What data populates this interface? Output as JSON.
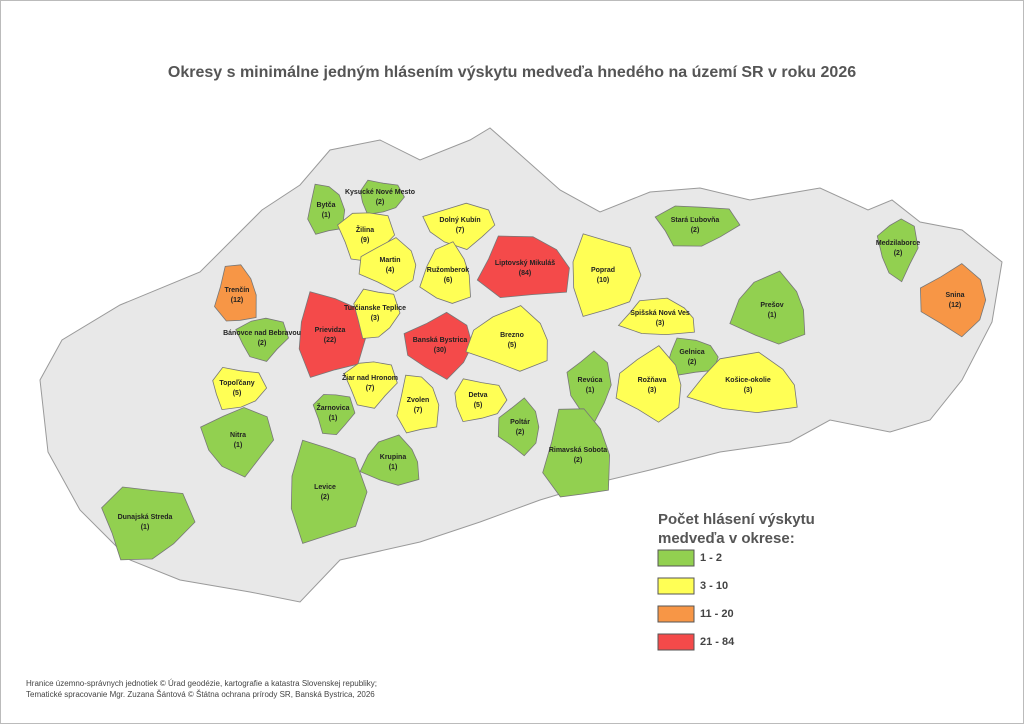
{
  "header": {
    "title": "Okresy s minimálne jedným hlásením výskytu medveďa hnedého na území SR v roku 2026"
  },
  "map": {
    "districts": [
      {
        "name": "Bytča",
        "count": "(1)",
        "color": "#92d050"
      },
      {
        "name": "Kysucké Nové Mesto",
        "count": "(2)",
        "color": "#92d050"
      },
      {
        "name": "Žilina",
        "count": "(9)",
        "color": "#ffff55"
      },
      {
        "name": "Dolný Kubín",
        "count": "(7)",
        "color": "#ffff55"
      },
      {
        "name": "Martin",
        "count": "(4)",
        "color": "#ffff55"
      },
      {
        "name": "Ružomberok",
        "count": "(6)",
        "color": "#ffff55"
      },
      {
        "name": "Liptovský Mikuláš",
        "count": "(84)",
        "color": "#f44a4a"
      },
      {
        "name": "Poprad",
        "count": "(10)",
        "color": "#ffff55"
      },
      {
        "name": "Stará Ľubovňa",
        "count": "(2)",
        "color": "#92d050"
      },
      {
        "name": "Medzilaborce",
        "count": "(2)",
        "color": "#92d050"
      },
      {
        "name": "Snina",
        "count": "(12)",
        "color": "#f79646"
      },
      {
        "name": "Prešov",
        "count": "(1)",
        "color": "#92d050"
      },
      {
        "name": "Trenčín",
        "count": "(12)",
        "color": "#f79646"
      },
      {
        "name": "Prievidza",
        "count": "(22)",
        "color": "#f44a4a"
      },
      {
        "name": "Turčianske Teplice",
        "count": "(3)",
        "color": "#ffff55"
      },
      {
        "name": "Bánovce nad Bebravou",
        "count": "(2)",
        "color": "#92d050"
      },
      {
        "name": "Banská Bystrica",
        "count": "(30)",
        "color": "#f44a4a"
      },
      {
        "name": "Brezno",
        "count": "(5)",
        "color": "#ffff55"
      },
      {
        "name": "Spišská Nová Ves",
        "count": "(3)",
        "color": "#ffff55"
      },
      {
        "name": "Gelnica",
        "count": "(2)",
        "color": "#92d050"
      },
      {
        "name": "Topoľčany",
        "count": "(5)",
        "color": "#ffff55"
      },
      {
        "name": "Žiar nad Hronom",
        "count": "(7)",
        "color": "#ffff55"
      },
      {
        "name": "Revúca",
        "count": "(1)",
        "color": "#92d050"
      },
      {
        "name": "Rožňava",
        "count": "(3)",
        "color": "#ffff55"
      },
      {
        "name": "Košice-okolie",
        "count": "(3)",
        "color": "#ffff55"
      },
      {
        "name": "Zvolen",
        "count": "(7)",
        "color": "#ffff55"
      },
      {
        "name": "Detva",
        "count": "(5)",
        "color": "#ffff55"
      },
      {
        "name": "Žarnovica",
        "count": "(1)",
        "color": "#92d050"
      },
      {
        "name": "Nitra",
        "count": "(1)",
        "color": "#92d050"
      },
      {
        "name": "Poltár",
        "count": "(2)",
        "color": "#92d050"
      },
      {
        "name": "Krupina",
        "count": "(1)",
        "color": "#92d050"
      },
      {
        "name": "Rimavská Sobota",
        "count": "(2)",
        "color": "#92d050"
      },
      {
        "name": "Levice",
        "count": "(2)",
        "color": "#92d050"
      },
      {
        "name": "Dunajská Streda",
        "count": "(1)",
        "color": "#92d050"
      }
    ]
  },
  "legend": {
    "title_lines": [
      "Počet hlásení výskytu",
      "medveďa v okrese:"
    ],
    "items": [
      {
        "label": "1 - 2",
        "color": "#92d050"
      },
      {
        "label": "3 - 10",
        "color": "#ffff55"
      },
      {
        "label": "11 - 20",
        "color": "#f79646"
      },
      {
        "label": "21 - 84",
        "color": "#f44a4a"
      }
    ]
  },
  "footer": {
    "lines": [
      "Hranice územno-správnych jednotiek © Úrad geodézie, kartografie a katastra Slovenskej republiky;",
      "Tematické spracovanie Mgr. Zuzana Šántová © Štátna ochrana prírody SR, Banská Bystrica, 2026"
    ]
  }
}
